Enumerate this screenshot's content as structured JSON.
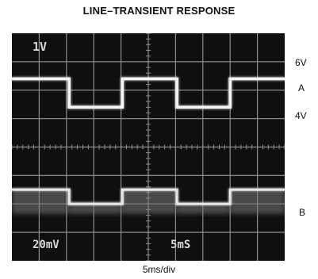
{
  "chart_data": {
    "type": "line",
    "title": "LINE–TRANSIENT RESPONSE",
    "xlabel": "5ms/div",
    "ylabel": "",
    "grid": true,
    "x_divisions": 10,
    "y_divisions": 8,
    "screen_text": {
      "ch_a_scale": "1V",
      "ch_b_scale": "20mV",
      "timebase": "5mS"
    },
    "right_labels": {
      "high": "6V",
      "trace_a": "A",
      "low": "4V",
      "trace_b": "B"
    },
    "trace_a": {
      "x_div": [
        0,
        2.1,
        2.1,
        4.05,
        4.05,
        6.05,
        6.05,
        8.0,
        8.0,
        10
      ],
      "y_div": [
        6.4,
        6.4,
        5.4,
        5.4,
        6.4,
        6.4,
        5.4,
        5.4,
        6.4,
        6.4
      ]
    },
    "trace_b": {
      "x_div": [
        0,
        2.1,
        2.1,
        4.05,
        4.05,
        6.05,
        6.05,
        8.0,
        8.0,
        10
      ],
      "y_div": [
        2.5,
        2.5,
        2.0,
        2.0,
        2.5,
        2.5,
        2.0,
        2.0,
        2.5,
        2.5
      ]
    },
    "trace_b_baseline_div": 1.65,
    "colors": {
      "screen": "#0f0f0f",
      "grid": "#8c8c8c",
      "trace": "#f4f4f4"
    }
  }
}
